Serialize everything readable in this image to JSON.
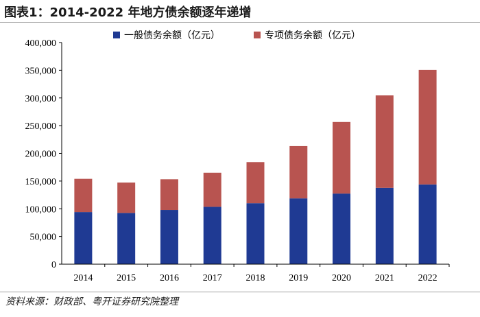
{
  "title": "图表1：2014-2022 年地方债余额逐年递增",
  "source": "资料来源：财政部、粤开证券研究院整理",
  "chart_data": {
    "type": "bar",
    "stacked": true,
    "categories": [
      "2014",
      "2015",
      "2016",
      "2017",
      "2018",
      "2019",
      "2020",
      "2021",
      "2022"
    ],
    "series": [
      {
        "name": "一般债务余额（亿元）",
        "color": "#1f3a93",
        "values": [
          94000,
          92500,
          97800,
          103500,
          110000,
          118700,
          127400,
          137700,
          143900
        ]
      },
      {
        "name": "专项债务余额（亿元）",
        "color": "#b85450",
        "values": [
          60000,
          54800,
          55400,
          61500,
          74200,
          94400,
          129200,
          166900,
          206700
        ]
      }
    ],
    "yticks": [
      "0",
      "50,000",
      "100,000",
      "150,000",
      "200,000",
      "250,000",
      "300,000",
      "350,000",
      "400,000"
    ],
    "ylim": [
      0,
      400000
    ],
    "legend_position": "top",
    "grid": false
  }
}
